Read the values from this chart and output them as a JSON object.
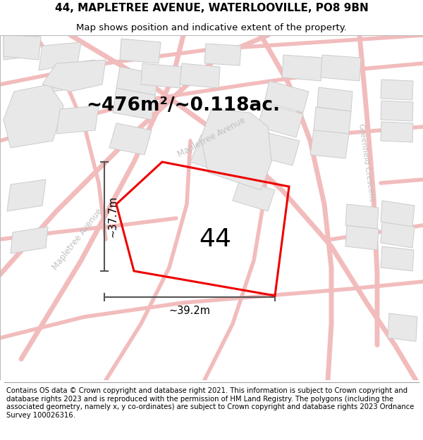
{
  "title_line1": "44, MAPLETREE AVENUE, WATERLOOVILLE, PO8 9BN",
  "title_line2": "Map shows position and indicative extent of the property.",
  "footer_text": "Contains OS data © Crown copyright and database right 2021. This information is subject to Crown copyright and database rights 2023 and is reproduced with the permission of HM Land Registry. The polygons (including the associated geometry, namely x, y co-ordinates) are subject to Crown copyright and database rights 2023 Ordnance Survey 100026316.",
  "area_text": "~476m²/~0.118ac.",
  "number_label": "44",
  "dim_vertical": "~37.7m",
  "dim_horizontal": "~39.2m",
  "map_bg": "#f7f7f7",
  "plot_color_edge": "#ee0000",
  "road_color": "#f2bcbc",
  "road_color2": "#f2bcbc",
  "block_color": "#e8e8e8",
  "block_edge_color": "#cccccc",
  "dim_color": "#555555",
  "street_label_color": "#c0c0c0",
  "title_fontsize": 11,
  "subtitle_fontsize": 9.5,
  "footer_fontsize": 7.2,
  "area_fontsize": 19,
  "number_fontsize": 26,
  "dim_fontsize": 10.5,
  "street_fontsize": 8.5
}
